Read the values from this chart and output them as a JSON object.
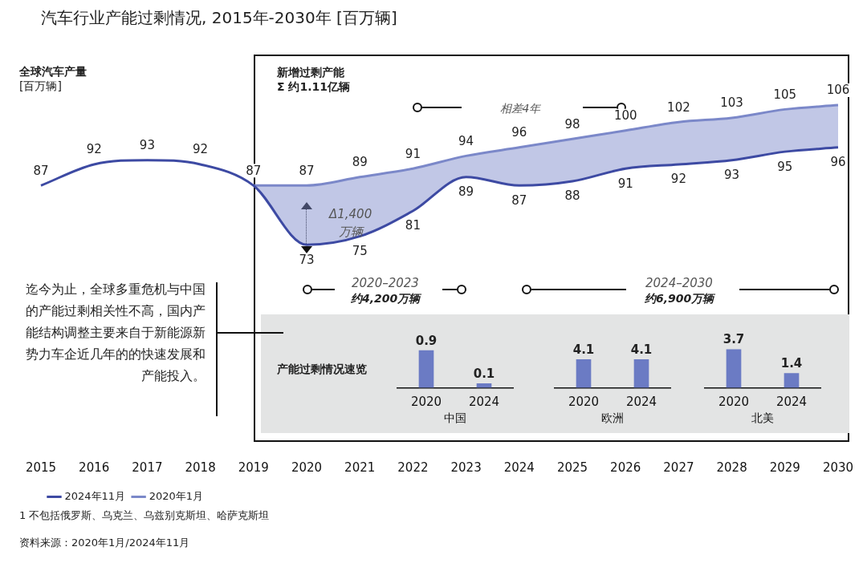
{
  "chart_data": [
    {
      "type": "line",
      "title": "汽车行业产能过剩情况, 2015年-2030年 [百万辆]",
      "ylabel": "全球汽车产量\n[百万辆]",
      "categories": [
        "2015",
        "2016",
        "2017",
        "2018",
        "2019",
        "2020",
        "2021",
        "2022",
        "2023",
        "2024",
        "2025",
        "2026",
        "2027",
        "2028",
        "2029",
        "2030"
      ],
      "series": [
        {
          "name": "2024年11月",
          "color": "#3d4aa3",
          "values": [
            87,
            92,
            93,
            92,
            87,
            73,
            75,
            81,
            89,
            87,
            88,
            91,
            92,
            93,
            95,
            96
          ]
        },
        {
          "name": "2020年1月",
          "color": "#7b88c9",
          "values": [
            null,
            null,
            null,
            null,
            87,
            87,
            89,
            91,
            94,
            96,
            98,
            100,
            102,
            103,
            105,
            106
          ],
          "lower": [
            null,
            null,
            null,
            null,
            87,
            73,
            75,
            81,
            89,
            87,
            88,
            91,
            92,
            93,
            95,
            96
          ],
          "upper": [
            null,
            null,
            null,
            null,
            87,
            87,
            89,
            91,
            94,
            96,
            98,
            100,
            102,
            103,
            105,
            106
          ],
          "value_labels": [
            null,
            null,
            null,
            null,
            null,
            "87",
            "89",
            "91",
            "94",
            "96",
            "98",
            "100",
            "102",
            "103",
            "105",
            "106"
          ]
        }
      ],
      "tick_labels": "x",
      "marker": "none",
      "data_labels": true,
      "legend": "bottom left",
      "annotations": [
        "新增过剩产能\nΣ 约1.11亿辆",
        "相差4年",
        "Δ1,400\n万辆",
        "2020–2023",
        "约4,200万辆",
        "2024–2030",
        "约6,900万辆",
        "迄今为止，全球多重危机与中国的产能过剩相关性不高，国内产能结构调整主要来自于新能源新势力车企近几年的的快速发展和产能投入。",
        "产能过剩情况速览",
        "1 不包括俄罗斯、乌克兰、乌兹别克斯坦、哈萨克斯坦",
        "资料来源：2020年1月/2024年11月"
      ]
    },
    {
      "type": "bar",
      "categories": [
        "2020",
        "2024"
      ],
      "values": [
        0.9,
        0.1
      ],
      "xlabel": "中国",
      "color": "#6b7bc4",
      "data_labels": true,
      "tick_labels": "x"
    },
    {
      "type": "bar",
      "categories": [
        "2020",
        "2024"
      ],
      "values": [
        4.1,
        4.1
      ],
      "xlabel": "欧洲",
      "color": "#6b7bc4",
      "data_labels": true,
      "tick_labels": "x"
    },
    {
      "type": "bar",
      "categories": [
        "2020",
        "2024"
      ],
      "values": [
        3.7,
        1.4
      ],
      "xlabel": "北美",
      "color": "#6b7bc4",
      "data_labels": true,
      "tick_labels": "x"
    }
  ]
}
